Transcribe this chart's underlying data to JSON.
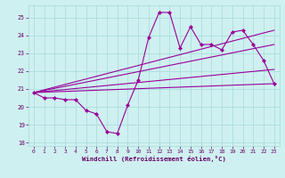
{
  "xlabel": "Windchill (Refroidissement éolien,°C)",
  "bg_color": "#cff0f0",
  "grid_color": "#aadddd",
  "line_color": "#990099",
  "x_ticks": [
    0,
    1,
    2,
    3,
    4,
    5,
    6,
    7,
    8,
    9,
    10,
    11,
    12,
    13,
    14,
    15,
    16,
    17,
    18,
    19,
    20,
    21,
    22,
    23
  ],
  "y_ticks": [
    18,
    19,
    20,
    21,
    22,
    23,
    24,
    25
  ],
  "ylim": [
    17.8,
    25.7
  ],
  "xlim": [
    -0.5,
    23.5
  ],
  "series1": [
    20.8,
    20.5,
    20.5,
    20.4,
    20.4,
    19.8,
    19.6,
    18.6,
    18.5,
    20.1,
    21.5,
    23.9,
    25.3,
    25.3,
    23.3,
    24.5,
    23.5,
    23.5,
    23.2,
    24.2,
    24.3,
    23.5,
    22.6,
    21.3
  ],
  "trend1_x": [
    0,
    23
  ],
  "trend1_y": [
    20.8,
    21.3
  ],
  "trend2_x": [
    0,
    23
  ],
  "trend2_y": [
    20.8,
    23.5
  ],
  "trend3_x": [
    0,
    23
  ],
  "trend3_y": [
    20.8,
    24.3
  ],
  "trend4_x": [
    0,
    23
  ],
  "trend4_y": [
    20.8,
    22.1
  ]
}
